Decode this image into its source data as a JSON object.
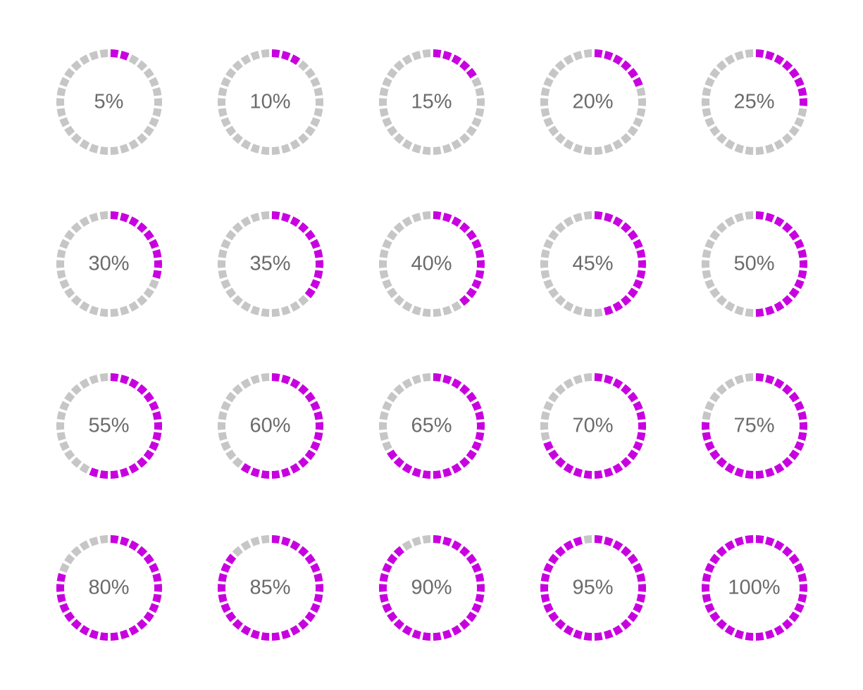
{
  "infographic": {
    "type": "radial-progress-grid",
    "columns": 5,
    "rows": 4,
    "background_color": "#ffffff",
    "dial": {
      "diameter": 150,
      "segment_count": 30,
      "segment_gap_deg": 3.2,
      "stroke_width": 11,
      "empty_color": "#c6c6c6",
      "fill_color": "#c800e0",
      "start_angle_deg": -90
    },
    "label": {
      "font_size": 29,
      "font_weight": 400,
      "color": "#6b6b6b",
      "suffix": "%"
    },
    "items": [
      {
        "value": 5,
        "label": "5%"
      },
      {
        "value": 10,
        "label": "10%"
      },
      {
        "value": 15,
        "label": "15%"
      },
      {
        "value": 20,
        "label": "20%"
      },
      {
        "value": 25,
        "label": "25%"
      },
      {
        "value": 30,
        "label": "30%"
      },
      {
        "value": 35,
        "label": "35%"
      },
      {
        "value": 40,
        "label": "40%"
      },
      {
        "value": 45,
        "label": "45%"
      },
      {
        "value": 50,
        "label": "50%"
      },
      {
        "value": 55,
        "label": "55%"
      },
      {
        "value": 60,
        "label": "60%"
      },
      {
        "value": 65,
        "label": "65%"
      },
      {
        "value": 70,
        "label": "70%"
      },
      {
        "value": 75,
        "label": "75%"
      },
      {
        "value": 80,
        "label": "80%"
      },
      {
        "value": 85,
        "label": "85%"
      },
      {
        "value": 90,
        "label": "90%"
      },
      {
        "value": 95,
        "label": "95%"
      },
      {
        "value": 100,
        "label": "100%"
      }
    ]
  }
}
